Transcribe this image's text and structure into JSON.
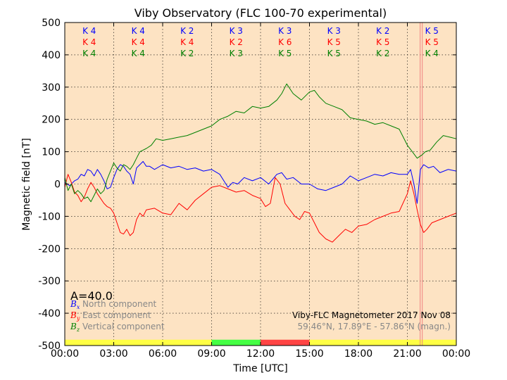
{
  "chart_data": {
    "type": "line",
    "title": "Viby Observatory (FLC 100-70 experimental)",
    "xlabel": "Time [UTC]",
    "ylabel": "Magnetic field [nT]",
    "xlim": [
      0,
      24
    ],
    "ylim": [
      -500,
      500
    ],
    "x_ticks": [
      {
        "value": 0,
        "label": "00:00"
      },
      {
        "value": 3,
        "label": "03:00"
      },
      {
        "value": 6,
        "label": "06:00"
      },
      {
        "value": 9,
        "label": "09:00"
      },
      {
        "value": 12,
        "label": "12:00"
      },
      {
        "value": 15,
        "label": "15:00"
      },
      {
        "value": 18,
        "label": "18:00"
      },
      {
        "value": 21,
        "label": "21:00"
      },
      {
        "value": 24,
        "label": "00:00"
      }
    ],
    "y_ticks": [
      500,
      400,
      300,
      200,
      100,
      0,
      -100,
      -200,
      -300,
      -400,
      -500
    ],
    "grid": true,
    "background_color": "#fde3c3",
    "series": [
      {
        "name": "North component",
        "symbol": "B",
        "subscript": "x",
        "color": "#0000ff",
        "x": [
          0,
          0.3,
          0.6,
          0.8,
          1.0,
          1.2,
          1.4,
          1.6,
          1.8,
          2.0,
          2.2,
          2.4,
          2.6,
          2.8,
          3.0,
          3.2,
          3.4,
          3.6,
          3.8,
          4.0,
          4.2,
          4.4,
          4.6,
          4.8,
          5.0,
          5.2,
          5.5,
          6.0,
          6.5,
          7.0,
          7.5,
          8.0,
          8.5,
          9.0,
          9.5,
          10.0,
          10.3,
          10.6,
          11.0,
          11.5,
          12.0,
          12.5,
          13.0,
          13.3,
          13.6,
          14.0,
          14.5,
          15.0,
          15.5,
          16.0,
          16.5,
          17.0,
          17.5,
          18.0,
          18.5,
          19.0,
          19.5,
          20.0,
          20.5,
          21.0,
          21.2,
          21.4,
          21.6,
          21.8,
          22.0,
          22.3,
          22.6,
          23.0,
          23.5,
          24.0
        ],
        "y": [
          5,
          -5,
          10,
          15,
          30,
          25,
          45,
          40,
          25,
          45,
          30,
          10,
          -15,
          -10,
          20,
          45,
          60,
          55,
          40,
          30,
          0,
          50,
          60,
          70,
          55,
          55,
          45,
          60,
          50,
          55,
          45,
          50,
          40,
          45,
          30,
          -10,
          5,
          0,
          20,
          10,
          20,
          0,
          30,
          35,
          15,
          20,
          0,
          0,
          -15,
          -20,
          -10,
          0,
          25,
          10,
          20,
          30,
          25,
          35,
          30,
          30,
          45,
          0,
          -60,
          45,
          60,
          50,
          55,
          35,
          45,
          40
        ]
      },
      {
        "name": "East component",
        "symbol": "B",
        "subscript": "y",
        "color": "#ff0000",
        "x": [
          0,
          0.2,
          0.4,
          0.6,
          0.8,
          1.0,
          1.2,
          1.4,
          1.6,
          1.8,
          2.0,
          2.2,
          2.4,
          2.6,
          2.8,
          3.0,
          3.2,
          3.4,
          3.6,
          3.8,
          4.0,
          4.2,
          4.4,
          4.6,
          4.8,
          5.0,
          5.5,
          6.0,
          6.5,
          7.0,
          7.5,
          8.0,
          8.5,
          9.0,
          9.5,
          10.0,
          10.5,
          11.0,
          11.5,
          12.0,
          12.3,
          12.6,
          12.9,
          13.2,
          13.5,
          13.8,
          14.1,
          14.4,
          14.7,
          15.0,
          15.3,
          15.6,
          16.0,
          16.4,
          16.8,
          17.2,
          17.6,
          18.0,
          18.5,
          19.0,
          19.5,
          20.0,
          20.5,
          21.0,
          21.2,
          21.4,
          21.6,
          21.8,
          22.0,
          22.2,
          22.5,
          23.0,
          23.5,
          24.0
        ],
        "y": [
          -10,
          30,
          5,
          -25,
          -35,
          -55,
          -40,
          -15,
          5,
          -10,
          -30,
          -45,
          -60,
          -70,
          -75,
          -90,
          -120,
          -150,
          -155,
          -140,
          -160,
          -150,
          -110,
          -90,
          -100,
          -80,
          -75,
          -90,
          -95,
          -60,
          -80,
          -50,
          -30,
          -10,
          -5,
          -15,
          -25,
          -20,
          -35,
          -45,
          -70,
          -60,
          20,
          0,
          -60,
          -80,
          -100,
          -110,
          -85,
          -90,
          -120,
          -150,
          -170,
          -180,
          -160,
          -140,
          -150,
          -130,
          -125,
          -110,
          -100,
          -90,
          -85,
          -30,
          10,
          -30,
          -80,
          -125,
          -150,
          -140,
          -120,
          -110,
          -100,
          -90
        ]
      },
      {
        "name": "Vertical component",
        "symbol": "B",
        "subscript": "z",
        "color": "#008000",
        "x": [
          0,
          0.2,
          0.4,
          0.6,
          0.8,
          1.0,
          1.2,
          1.4,
          1.6,
          1.8,
          2.0,
          2.2,
          2.4,
          2.6,
          2.8,
          3.0,
          3.2,
          3.4,
          3.6,
          3.8,
          4.0,
          4.2,
          4.4,
          4.6,
          4.8,
          5.0,
          5.3,
          5.6,
          6.0,
          6.5,
          7.0,
          7.5,
          8.0,
          8.5,
          9.0,
          9.5,
          10.0,
          10.5,
          11.0,
          11.5,
          12.0,
          12.5,
          13.0,
          13.3,
          13.6,
          14.0,
          14.5,
          15.0,
          15.3,
          15.6,
          16.0,
          16.5,
          17.0,
          17.5,
          18.0,
          18.5,
          19.0,
          19.5,
          20.0,
          20.5,
          21.0,
          21.3,
          21.6,
          21.9,
          22.1,
          22.4,
          22.8,
          23.2,
          23.6,
          24.0
        ],
        "y": [
          20,
          -20,
          0,
          -30,
          -20,
          -30,
          -45,
          -40,
          -55,
          -35,
          -15,
          -30,
          -20,
          15,
          40,
          65,
          50,
          40,
          60,
          55,
          45,
          60,
          80,
          100,
          105,
          110,
          120,
          140,
          135,
          140,
          145,
          150,
          160,
          170,
          180,
          200,
          210,
          225,
          220,
          240,
          235,
          240,
          260,
          280,
          310,
          280,
          260,
          285,
          290,
          270,
          250,
          240,
          230,
          205,
          200,
          195,
          185,
          190,
          180,
          170,
          120,
          100,
          80,
          90,
          100,
          105,
          130,
          150,
          145,
          140
        ]
      }
    ],
    "k_indices": {
      "x_centers": [
        1.5,
        4.5,
        7.5,
        10.5,
        13.5,
        16.5,
        19.5,
        22.5
      ],
      "rows": [
        {
          "color": "#0000ff",
          "labels": [
            "K 4",
            "K 4",
            "K 2",
            "K 3",
            "K 3",
            "K 3",
            "K 2",
            "K 5"
          ]
        },
        {
          "color": "#ff0000",
          "labels": [
            "K 4",
            "K 4",
            "K 4",
            "K 2",
            "K 6",
            "K 5",
            "K 5",
            "K 5"
          ]
        },
        {
          "color": "#008000",
          "labels": [
            "K 4",
            "K 4",
            "K 2",
            "K 3",
            "K 5",
            "K 5",
            "K 2",
            "K 4"
          ]
        }
      ]
    },
    "status_bar": [
      {
        "start": 0,
        "end": 9,
        "color": "#ffff44"
      },
      {
        "start": 9,
        "end": 12,
        "color": "#44ff44"
      },
      {
        "start": 12,
        "end": 15,
        "color": "#ff4444"
      },
      {
        "start": 15,
        "end": 24,
        "color": "#ffff44"
      }
    ],
    "marker_x": 21.85,
    "marker_color": "#f08080",
    "a_index_text": "A=40.0",
    "info_lines": [
      {
        "text": "Viby-FLC Magnetometer 2017 Nov 08",
        "color": "#000000"
      },
      {
        "text": "59.46°N, 17.89°E - 57.86°N (magn.)",
        "color": "#888888"
      }
    ]
  }
}
